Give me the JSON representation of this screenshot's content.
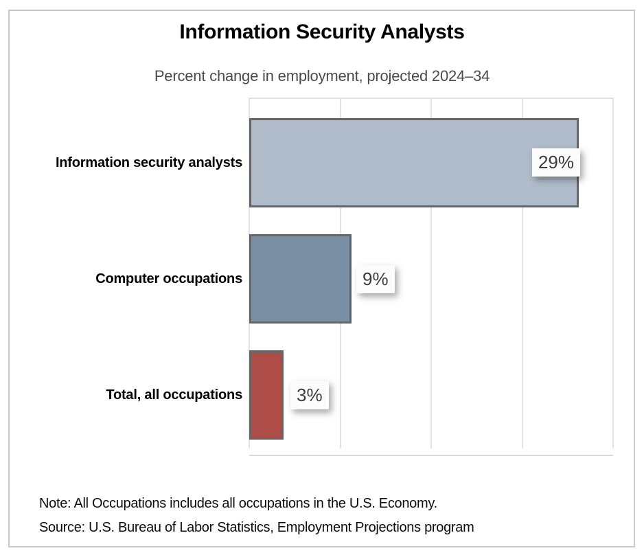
{
  "chart_data": {
    "type": "bar",
    "orientation": "horizontal",
    "title": "Information Security Analysts",
    "subtitle": "Percent change in employment, projected 2024–34",
    "categories": [
      "Information security analysts",
      "Computer occupations",
      "Total, all occupations"
    ],
    "values": [
      29,
      9,
      3
    ],
    "value_labels": [
      "29%",
      "9%",
      "3%"
    ],
    "bar_colors": [
      "#b0bcc9",
      "#7a8fa4",
      "#ae4c48"
    ],
    "bar_border_color": "#646567",
    "xlabel": "",
    "ylabel": "",
    "xlim": [
      0,
      32
    ],
    "gridlines_percent": [
      0,
      8,
      16,
      24,
      32
    ],
    "grid": "vertical",
    "legend": false,
    "axis_tick_labels_visible": false
  },
  "footer": {
    "note": "Note: All Occupations includes all occupations in the U.S. Economy.",
    "source": "Source: U.S. Bureau of Labor Statistics, Employment Projections program"
  }
}
